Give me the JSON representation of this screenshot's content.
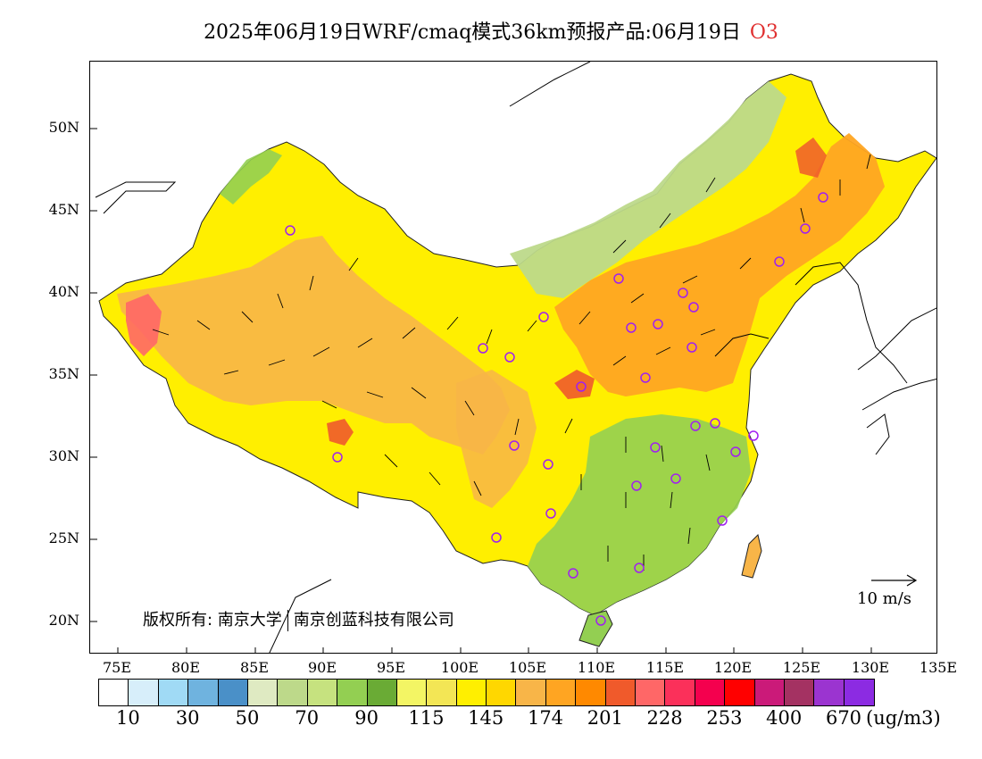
{
  "title": {
    "main": "2025年06月19日WRF/cmaq模式36km预报产品:06月19日",
    "pollutant": "O3"
  },
  "map": {
    "lat_labels": [
      "50N",
      "45N",
      "40N",
      "35N",
      "30N",
      "25N",
      "20N"
    ],
    "lon_labels": [
      "75E",
      "80E",
      "85E",
      "90E",
      "95E",
      "100E",
      "105E",
      "110E",
      "115E",
      "120E",
      "125E",
      "130E",
      "135E"
    ],
    "copyright_left": "版权所有: 南京大学",
    "copyright_right": "南京创蓝科技有限公司",
    "wind_reference": "10 m/s",
    "colors": {
      "outline": "#000000",
      "station_marker": "#a020f0",
      "ocean": "#ffffff"
    }
  },
  "colorbar": {
    "unit": "(ug/m3)",
    "labels": [
      "10",
      "30",
      "50",
      "70",
      "90",
      "115",
      "145",
      "174",
      "201",
      "228",
      "253",
      "400",
      "670"
    ],
    "colors": [
      "#ffffff",
      "#d7eefa",
      "#a0daf5",
      "#6fb3df",
      "#4a90c8",
      "#dfeac2",
      "#bdd98a",
      "#c6e27f",
      "#93cf52",
      "#6aab35",
      "#f3f564",
      "#f3e655",
      "#ffef00",
      "#ffd700",
      "#f8b548",
      "#ffa522",
      "#ff8900",
      "#f05a2b",
      "#ff6767",
      "#fb305a",
      "#f4004e",
      "#ff0000",
      "#cb1a79",
      "#a43262",
      "#9b34d0",
      "#8c2be2"
    ]
  }
}
